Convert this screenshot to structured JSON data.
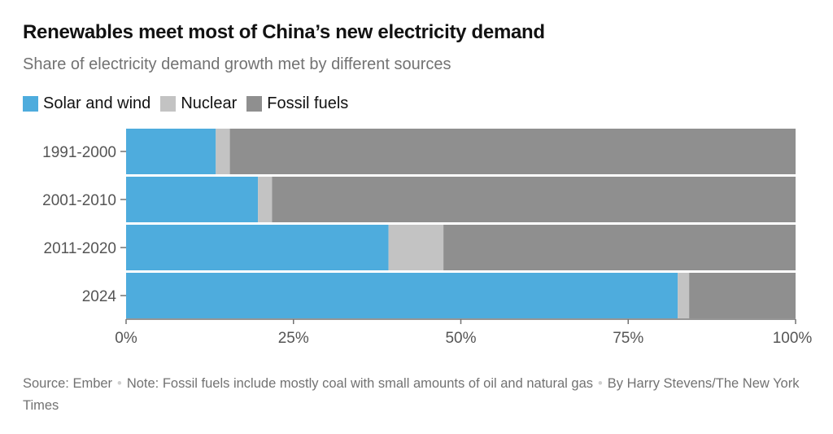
{
  "header": {
    "title": "Renewables meet most of China’s new electricity demand",
    "subtitle": "Share of electricity demand growth met by different sources"
  },
  "footer": {
    "source": "Source: Ember",
    "note": "Note: Fossil fuels include mostly coal with small amounts of oil and natural gas",
    "credit": "By Harry Stevens/The New York Times",
    "separator": "•"
  },
  "colors": {
    "solar_wind": "#4eacdd",
    "nuclear": "#c3c3c3",
    "fossil": "#8f8f8f",
    "axis": "#727272"
  },
  "chart_data": {
    "type": "bar",
    "orientation": "horizontal",
    "stacked": true,
    "categories": [
      "1991-2000",
      "2001-2010",
      "2011-2020",
      "2024"
    ],
    "series": [
      {
        "name": "Solar and wind",
        "values": [
          13.4,
          19.7,
          39.2,
          82.4
        ]
      },
      {
        "name": "Nuclear",
        "values": [
          2.1,
          2.1,
          8.2,
          1.7
        ]
      },
      {
        "name": "Fossil fuels",
        "values": [
          84.5,
          78.2,
          52.6,
          15.9
        ]
      }
    ],
    "xlim": [
      0,
      100
    ],
    "xticks": [
      "0%",
      "25%",
      "50%",
      "75%",
      "100%"
    ],
    "xtick_values": [
      0,
      25,
      50,
      75,
      100
    ],
    "legend_position": "top-left",
    "grid": false
  }
}
